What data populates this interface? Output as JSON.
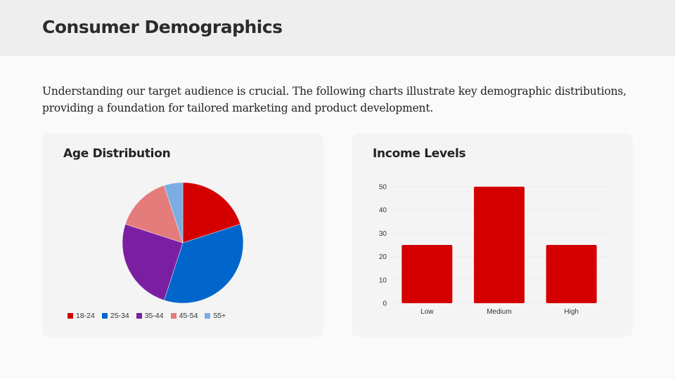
{
  "header": {
    "title": "Consumer Demographics"
  },
  "intro": "Understanding our target audience is crucial. The following charts illustrate key demographic distributions, providing a foundation for tailored marketing and product development.",
  "cards": {
    "age": {
      "title": "Age Distribution"
    },
    "income": {
      "title": "Income Levels"
    }
  },
  "legend": [
    {
      "label": "18-24",
      "color": "#d40000"
    },
    {
      "label": "25-34",
      "color": "#0066cc"
    },
    {
      "label": "35-44",
      "color": "#7b1fa2"
    },
    {
      "label": "45-54",
      "color": "#e57c7c"
    },
    {
      "label": "55+",
      "color": "#7aaee3"
    }
  ],
  "yticks": [
    "0",
    "10",
    "20",
    "30",
    "40",
    "50"
  ],
  "xticks": [
    "Low",
    "Medium",
    "High"
  ],
  "chart_data": [
    {
      "type": "pie",
      "title": "Age Distribution",
      "categories": [
        "18-24",
        "25-34",
        "35-44",
        "45-54",
        "55+"
      ],
      "values": [
        20,
        35,
        25,
        15,
        5
      ],
      "colors": [
        "#d40000",
        "#0066cc",
        "#7b1fa2",
        "#e57c7c",
        "#7aaee3"
      ],
      "legend_position": "bottom"
    },
    {
      "type": "bar",
      "title": "Income Levels",
      "categories": [
        "Low",
        "Medium",
        "High"
      ],
      "values": [
        25,
        50,
        25
      ],
      "color": "#d40000",
      "xlabel": "",
      "ylabel": "",
      "ylim": [
        0,
        50
      ],
      "grid": true
    }
  ]
}
